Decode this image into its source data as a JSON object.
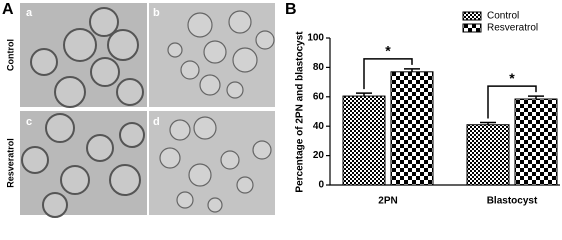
{
  "panel_a": {
    "label": "A",
    "images": [
      {
        "label": "a"
      },
      {
        "label": "b"
      },
      {
        "label": "c"
      },
      {
        "label": "d"
      }
    ],
    "row_labels": [
      "Control",
      "Resveratrol"
    ]
  },
  "chart_data": {
    "type": "bar",
    "panel_label": "B",
    "y_label": "Percentage of 2PN and blastocyst",
    "categories": [
      "2PN",
      "Blastocyst"
    ],
    "series": [
      {
        "name": "Control",
        "color": "#000000",
        "values": [
          60.5,
          41
        ],
        "errors": [
          2,
          1.5
        ]
      },
      {
        "name": "Resveratrol",
        "color": "#000000",
        "values": [
          77,
          58.5
        ],
        "errors": [
          2,
          2
        ]
      }
    ],
    "annotations": [
      "*",
      "*"
    ],
    "ylim": [
      0,
      100
    ],
    "yticks": [
      0,
      20,
      40,
      60,
      80,
      100
    ],
    "legend": "top-right"
  }
}
